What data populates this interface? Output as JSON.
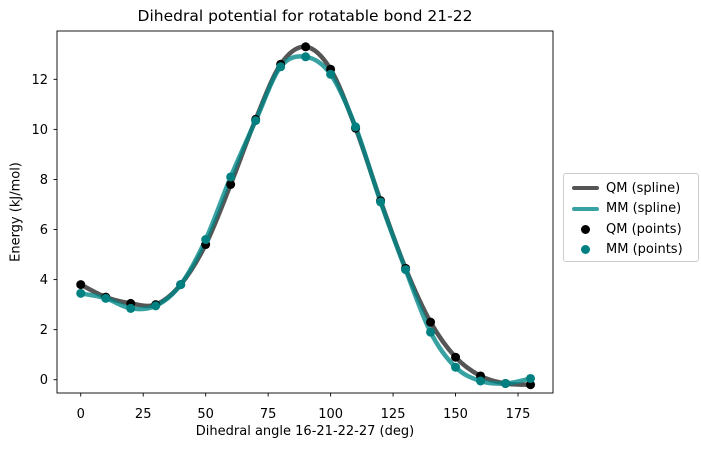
{
  "accent_colors": {
    "qm_spline": "rgba(20,20,20,0.72)",
    "mm_spline": "rgba(0,134,134,0.78)",
    "qm_points": "#000000",
    "mm_points": "#008080",
    "spine": "#000000",
    "legend_border": "#cccccc"
  },
  "chart_data": {
    "type": "line",
    "title": "Dihedral potential for rotatable bond 21-22",
    "xlabel": "Dihedral angle 16-21-22-27 (deg)",
    "ylabel": "Energy (kJ/mol)",
    "x": [
      0,
      10,
      20,
      30,
      40,
      50,
      60,
      70,
      80,
      90,
      100,
      110,
      120,
      130,
      140,
      150,
      160,
      170,
      180
    ],
    "series": [
      {
        "name": "QM (spline)",
        "style": "spline",
        "color": "rgba(20,20,20,0.72)",
        "linewidth": 4.5,
        "values": [
          3.8,
          3.3,
          3.05,
          3.0,
          3.8,
          5.4,
          7.8,
          10.4,
          12.6,
          13.3,
          12.4,
          10.05,
          7.15,
          4.45,
          2.3,
          0.9,
          0.15,
          -0.15,
          -0.2
        ]
      },
      {
        "name": "MM (spline)",
        "style": "spline",
        "color": "rgba(0,134,134,0.78)",
        "linewidth": 4.5,
        "values": [
          3.45,
          3.25,
          2.85,
          2.95,
          3.8,
          5.6,
          8.1,
          10.35,
          12.5,
          12.9,
          12.2,
          10.1,
          7.1,
          4.4,
          1.9,
          0.5,
          -0.05,
          -0.15,
          0.05
        ]
      },
      {
        "name": "QM (points)",
        "style": "scatter",
        "color": "#000000",
        "markersize": 4.5,
        "values": [
          3.8,
          3.3,
          3.05,
          3.0,
          3.8,
          5.4,
          7.8,
          10.4,
          12.6,
          13.3,
          12.4,
          10.05,
          7.15,
          4.45,
          2.3,
          0.9,
          0.15,
          -0.15,
          -0.2
        ]
      },
      {
        "name": "MM (points)",
        "style": "scatter",
        "color": "#008080",
        "markersize": 4.5,
        "values": [
          3.45,
          3.25,
          2.85,
          2.95,
          3.8,
          5.6,
          8.1,
          10.35,
          12.5,
          12.9,
          12.2,
          10.1,
          7.1,
          4.4,
          1.9,
          0.5,
          -0.05,
          -0.15,
          0.05
        ]
      }
    ],
    "xticks": [
      0,
      25,
      50,
      75,
      100,
      125,
      150,
      175
    ],
    "yticks": [
      0,
      2,
      4,
      6,
      8,
      10,
      12
    ],
    "xlim": [
      -9.5,
      189
    ],
    "ylim": [
      -0.53,
      13.93
    ],
    "grid": false,
    "legend_position": "center-right-outside"
  }
}
